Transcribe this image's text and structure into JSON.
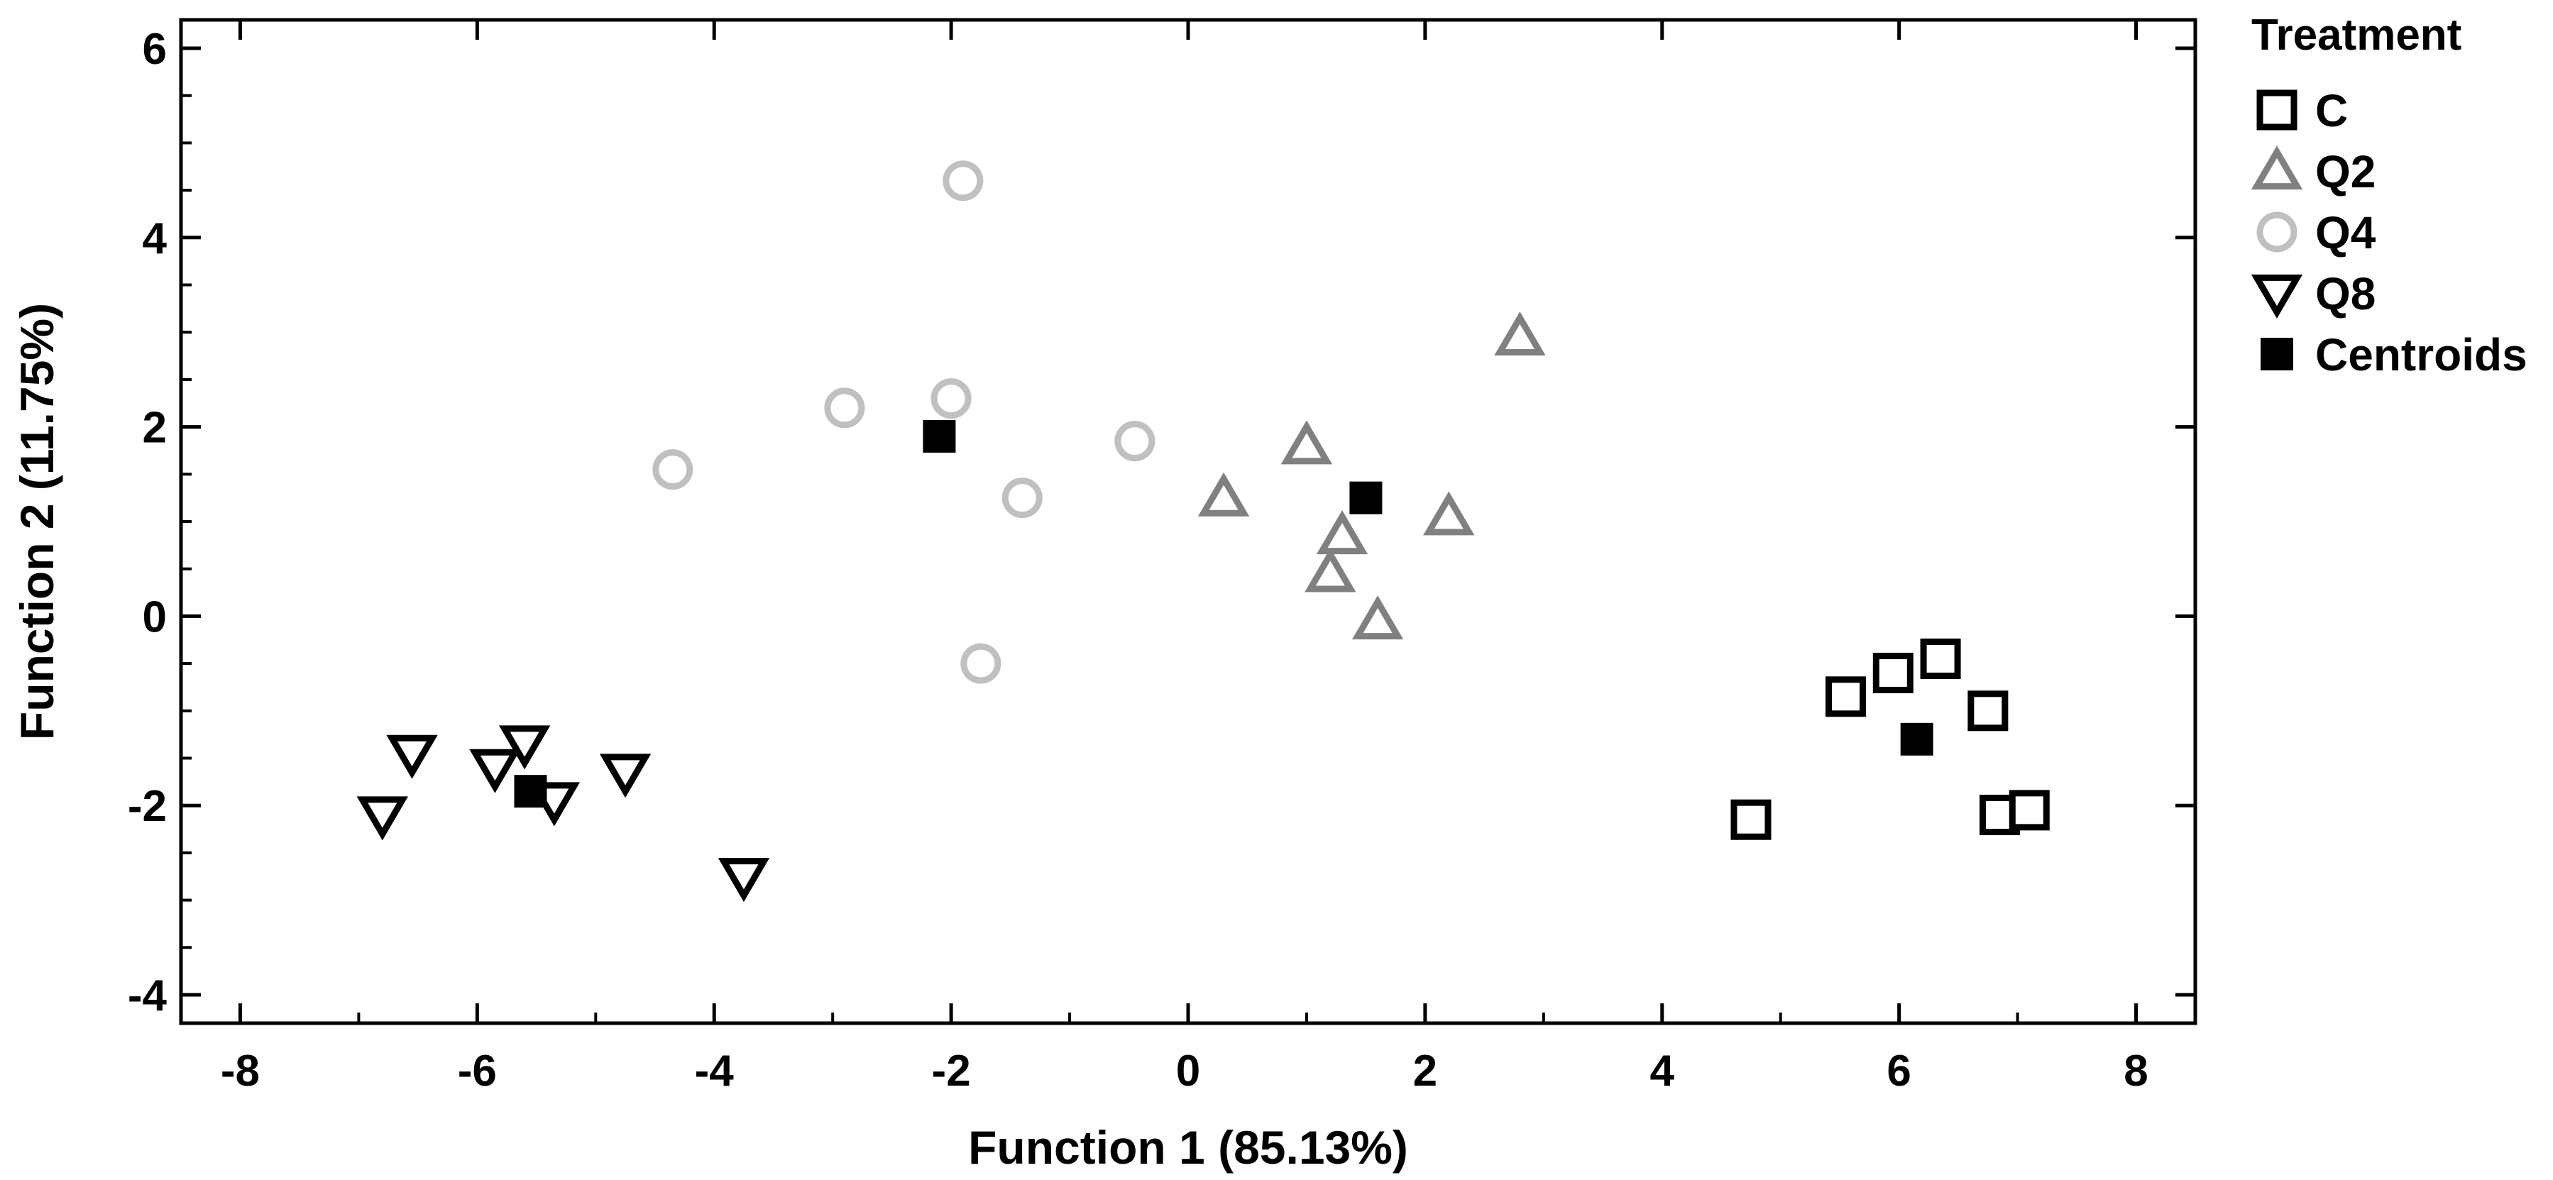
{
  "chart_data": {
    "type": "scatter",
    "title": "",
    "xlabel": "Function 1 (85.13%)",
    "ylabel": "Function 2 (11.75%)",
    "xlim": [
      -8.5,
      8.5
    ],
    "ylim": [
      -4.3,
      6.3
    ],
    "x_ticks": [
      -8,
      -6,
      -4,
      -2,
      0,
      2,
      4,
      6,
      8
    ],
    "y_ticks": [
      -4,
      -2,
      0,
      2,
      4,
      6
    ],
    "x_tick_labels": [
      "-8",
      "-6",
      "-4",
      "-2",
      "0",
      "2",
      "4",
      "6",
      "8"
    ],
    "y_tick_labels": [
      "-4",
      "-2",
      "0",
      "2",
      "4",
      "6"
    ],
    "grid": false,
    "legend": {
      "title": "Treatment",
      "position": "outside-right",
      "entries": [
        "C",
        "Q2",
        "Q4",
        "Q8",
        "Centroids"
      ]
    },
    "series": [
      {
        "name": "C",
        "marker": "square-open",
        "color": "#000000",
        "points": [
          [
            4.75,
            -2.15
          ],
          [
            5.55,
            -0.85
          ],
          [
            5.95,
            -0.6
          ],
          [
            6.35,
            -0.45
          ],
          [
            6.75,
            -1.0
          ],
          [
            6.85,
            -2.1
          ],
          [
            7.1,
            -2.05
          ]
        ]
      },
      {
        "name": "Q2",
        "marker": "triangle-up-open",
        "color": "#808080",
        "points": [
          [
            0.3,
            1.25
          ],
          [
            1.0,
            1.8
          ],
          [
            1.2,
            0.45
          ],
          [
            1.3,
            0.85
          ],
          [
            1.6,
            -0.05
          ],
          [
            2.2,
            1.05
          ],
          [
            2.8,
            2.95
          ]
        ]
      },
      {
        "name": "Q4",
        "marker": "circle-open",
        "color": "#c0c0c0",
        "points": [
          [
            -4.35,
            1.55
          ],
          [
            -2.9,
            2.2
          ],
          [
            -2.0,
            2.3
          ],
          [
            -1.9,
            4.6
          ],
          [
            -1.75,
            -0.5
          ],
          [
            -1.4,
            1.25
          ],
          [
            -0.45,
            1.85
          ]
        ]
      },
      {
        "name": "Q8",
        "marker": "triangle-down-open",
        "color": "#000000",
        "points": [
          [
            -6.8,
            -2.1
          ],
          [
            -6.55,
            -1.45
          ],
          [
            -5.85,
            -1.6
          ],
          [
            -5.6,
            -1.35
          ],
          [
            -5.35,
            -1.95
          ],
          [
            -4.75,
            -1.65
          ],
          [
            -3.75,
            -2.75
          ]
        ]
      },
      {
        "name": "Centroids",
        "marker": "square-filled",
        "color": "#000000",
        "points": [
          [
            6.15,
            -1.3
          ],
          [
            1.5,
            1.25
          ],
          [
            -2.1,
            1.9
          ],
          [
            -5.55,
            -1.85
          ]
        ]
      }
    ]
  }
}
